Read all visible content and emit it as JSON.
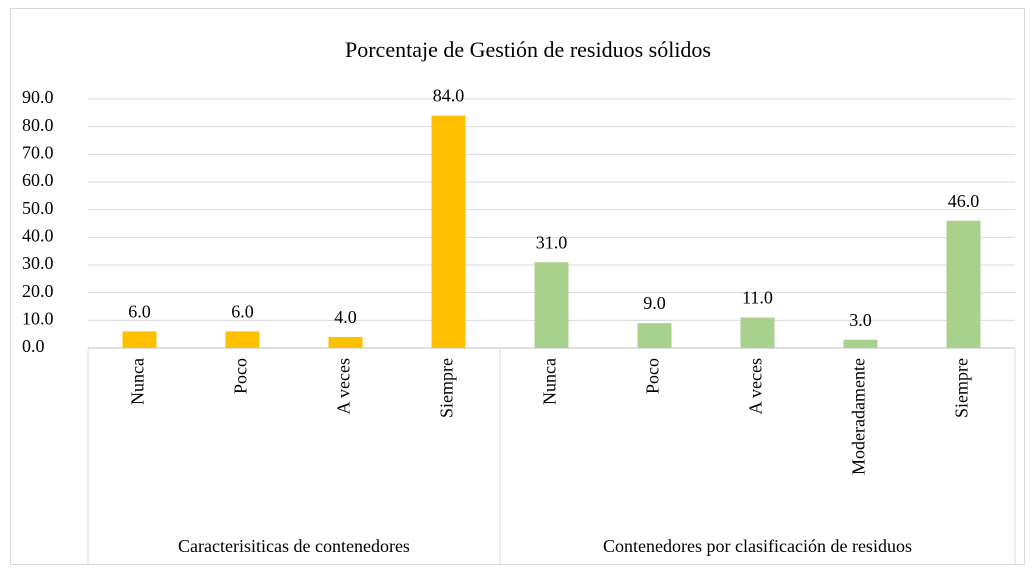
{
  "chart_data": {
    "type": "bar",
    "title": "Porcentaje de Gestión de residuos sólidos",
    "groups": [
      {
        "name": "Caracterisiticas de contenedores",
        "color": "#ffc000",
        "categories": [
          "Nunca",
          "Poco",
          "A veces",
          "Siempre"
        ],
        "values": [
          6,
          6,
          4,
          84
        ],
        "value_labels": [
          "6.0",
          "6.0",
          "4.0",
          "84.0"
        ]
      },
      {
        "name": "Contenedores por clasificación de residuos",
        "color": "#a9d18e",
        "categories": [
          "Nunca",
          "Poco",
          "A veces",
          "Moderadamente",
          "Siempre"
        ],
        "values": [
          31,
          9,
          11,
          3,
          46
        ],
        "value_labels": [
          "31.0",
          "9.0",
          "11.0",
          "3.0",
          "46.0"
        ]
      }
    ],
    "ylim": [
      0,
      90
    ],
    "yticks": [
      {
        "value": 0,
        "label": "0.0"
      },
      {
        "value": 10,
        "label": "10.0"
      },
      {
        "value": 20,
        "label": "20.0"
      },
      {
        "value": 30,
        "label": "30.0"
      },
      {
        "value": 40,
        "label": "40.0"
      },
      {
        "value": 50,
        "label": "50.0"
      },
      {
        "value": 60,
        "label": "60.0"
      },
      {
        "value": 70,
        "label": "70.0"
      },
      {
        "value": 80,
        "label": "80.0"
      },
      {
        "value": 90,
        "label": "90.0"
      }
    ],
    "grid": true
  }
}
